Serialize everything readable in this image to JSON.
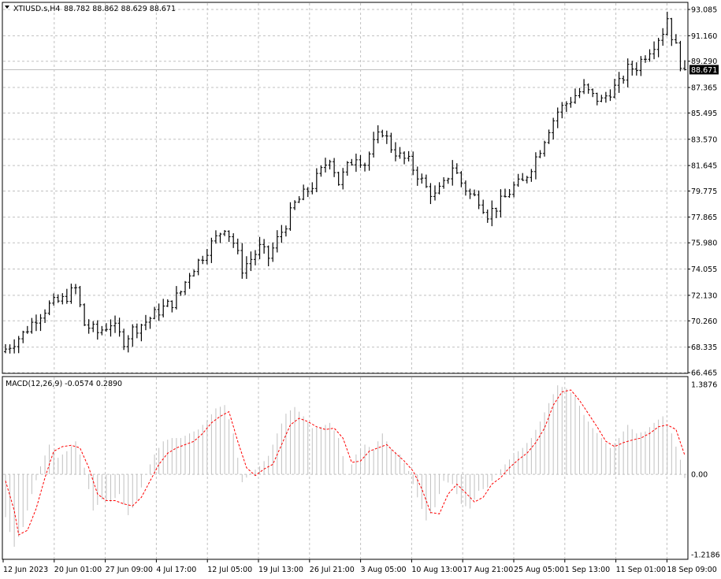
{
  "header": {
    "symbol_label": "XTIUSD.s,H4",
    "ohlc_text": "88.782 88.862 88.629 88.671",
    "macd_label": "MACD(12,26,9) -0.0574 0.2890"
  },
  "colors": {
    "background": "#ffffff",
    "grid": "#c0c0c0",
    "bars": "#000000",
    "histogram": "#c0c0c0",
    "signal": "#ff0000",
    "price_tag_bg": "#000000",
    "price_tag_text": "#ffffff"
  },
  "chart_data": [
    {
      "type": "ohlc",
      "title": "XTIUSD.s,H4",
      "y_ticks": [
        "93.085",
        "91.160",
        "89.290",
        "87.365",
        "85.495",
        "83.570",
        "81.645",
        "79.775",
        "77.865",
        "75.980",
        "74.055",
        "72.130",
        "70.260",
        "68.335",
        "66.465"
      ],
      "ylim": [
        66.465,
        93.085
      ],
      "current_price": 88.671,
      "current_price_label": "88.671",
      "x_ticks": [
        "12 Jun 2023",
        "20 Jun 01:00",
        "27 Jun 09:00",
        "4 Jul 17:00",
        "12 Jul 05:00",
        "19 Jul 13:00",
        "26 Jul 21:00",
        "3 Aug 05:00",
        "10 Aug 13:00",
        "17 Aug 21:00",
        "25 Aug 05:00",
        "1 Sep 13:00",
        "11 Sep 01:00",
        "18 Sep 09:00"
      ],
      "close_path": [
        [
          0,
          68.2
        ],
        [
          4,
          69.3
        ],
        [
          7,
          70.5
        ],
        [
          10,
          71.4
        ],
        [
          13,
          71.8
        ],
        [
          16,
          72.6
        ],
        [
          18,
          70.0
        ],
        [
          21,
          69.4
        ],
        [
          24,
          70.1
        ],
        [
          27,
          68.8
        ],
        [
          29,
          69.6
        ],
        [
          32,
          70.2
        ],
        [
          35,
          71.0
        ],
        [
          38,
          71.6
        ],
        [
          40,
          72.4
        ],
        [
          42,
          73.8
        ],
        [
          44,
          74.6
        ],
        [
          46,
          75.5
        ],
        [
          48,
          76.3
        ],
        [
          50,
          77.2
        ],
        [
          52,
          76.0
        ],
        [
          54,
          74.1
        ],
        [
          56,
          74.8
        ],
        [
          58,
          75.6
        ],
        [
          60,
          74.9
        ],
        [
          62,
          76.2
        ],
        [
          64,
          77.4
        ],
        [
          66,
          78.8
        ],
        [
          68,
          79.5
        ],
        [
          70,
          80.2
        ],
        [
          72,
          81.2
        ],
        [
          74,
          82.3
        ],
        [
          76,
          80.4
        ],
        [
          78,
          81.5
        ],
        [
          80,
          82.4
        ],
        [
          82,
          81.8
        ],
        [
          84,
          83.2
        ],
        [
          86,
          84.2
        ],
        [
          88,
          83.0
        ],
        [
          90,
          82.3
        ],
        [
          92,
          81.9
        ],
        [
          94,
          81.0
        ],
        [
          96,
          80.0
        ],
        [
          98,
          79.4
        ],
        [
          100,
          80.2
        ],
        [
          102,
          81.6
        ],
        [
          104,
          80.4
        ],
        [
          106,
          79.5
        ],
        [
          108,
          79.2
        ],
        [
          110,
          78.1
        ],
        [
          112,
          78.6
        ],
        [
          114,
          79.3
        ],
        [
          116,
          80.1
        ],
        [
          118,
          80.4
        ],
        [
          120,
          81.6
        ],
        [
          122,
          82.9
        ],
        [
          124,
          84.4
        ],
        [
          126,
          85.6
        ],
        [
          128,
          86.2
        ],
        [
          130,
          86.8
        ],
        [
          132,
          87.3
        ],
        [
          134,
          86.7
        ],
        [
          136,
          86.4
        ],
        [
          138,
          87.1
        ],
        [
          140,
          87.6
        ],
        [
          142,
          88.7
        ],
        [
          144,
          88.9
        ],
        [
          146,
          89.8
        ],
        [
          148,
          90.6
        ],
        [
          150,
          91.5
        ],
        [
          151,
          92.5
        ],
        [
          152,
          91.2
        ],
        [
          153,
          90.3
        ],
        [
          154,
          89.2
        ],
        [
          155,
          88.671
        ]
      ]
    },
    {
      "type": "line",
      "title": "MACD(12,26,9)",
      "y_ticks": [
        "1.3876",
        "0.00",
        "-1.2186"
      ],
      "ylim": [
        -1.2186,
        1.3876
      ],
      "series": [
        {
          "name": "MACD",
          "style": "histogram",
          "points": [
            [
              0,
              -0.65
            ],
            [
              2,
              -1.1
            ],
            [
              4,
              -0.8
            ],
            [
              6,
              -0.3
            ],
            [
              8,
              0.12
            ],
            [
              10,
              0.45
            ],
            [
              12,
              0.25
            ],
            [
              14,
              0.35
            ],
            [
              16,
              0.5
            ],
            [
              18,
              0.1
            ],
            [
              20,
              -0.55
            ],
            [
              22,
              -0.38
            ],
            [
              24,
              -0.42
            ],
            [
              26,
              -0.3
            ],
            [
              28,
              -0.62
            ],
            [
              30,
              -0.4
            ],
            [
              32,
              0.0
            ],
            [
              34,
              0.3
            ],
            [
              36,
              0.5
            ],
            [
              38,
              0.55
            ],
            [
              40,
              0.55
            ],
            [
              42,
              0.62
            ],
            [
              44,
              0.68
            ],
            [
              46,
              0.82
            ],
            [
              48,
              1.0
            ],
            [
              50,
              1.05
            ],
            [
              52,
              0.62
            ],
            [
              54,
              -0.12
            ],
            [
              56,
              0.02
            ],
            [
              58,
              0.12
            ],
            [
              60,
              0.28
            ],
            [
              62,
              0.62
            ],
            [
              64,
              0.92
            ],
            [
              66,
              1.02
            ],
            [
              68,
              0.88
            ],
            [
              70,
              0.7
            ],
            [
              72,
              0.72
            ],
            [
              74,
              0.78
            ],
            [
              76,
              0.55
            ],
            [
              78,
              0.0
            ],
            [
              80,
              0.3
            ],
            [
              82,
              0.45
            ],
            [
              84,
              0.38
            ],
            [
              86,
              0.62
            ],
            [
              88,
              0.38
            ],
            [
              90,
              0.3
            ],
            [
              92,
              0.05
            ],
            [
              94,
              -0.35
            ],
            [
              96,
              -0.7
            ],
            [
              98,
              -0.5
            ],
            [
              100,
              -0.1
            ],
            [
              102,
              -0.15
            ],
            [
              104,
              -0.45
            ],
            [
              106,
              -0.52
            ],
            [
              108,
              -0.25
            ],
            [
              110,
              -0.2
            ],
            [
              112,
              0.0
            ],
            [
              114,
              0.15
            ],
            [
              116,
              0.3
            ],
            [
              118,
              0.4
            ],
            [
              120,
              0.55
            ],
            [
              122,
              0.8
            ],
            [
              124,
              1.08
            ],
            [
              126,
              1.35
            ],
            [
              128,
              1.3
            ],
            [
              130,
              1.18
            ],
            [
              132,
              0.9
            ],
            [
              134,
              0.7
            ],
            [
              136,
              0.55
            ],
            [
              138,
              0.4
            ],
            [
              140,
              0.55
            ],
            [
              142,
              0.75
            ],
            [
              144,
              0.62
            ],
            [
              146,
              0.65
            ],
            [
              148,
              0.78
            ],
            [
              150,
              0.88
            ],
            [
              152,
              0.62
            ],
            [
              154,
              0.22
            ],
            [
              155,
              -0.0574
            ]
          ]
        },
        {
          "name": "Signal",
          "style": "dotted-line",
          "points": [
            [
              0,
              -0.1
            ],
            [
              2,
              -0.55
            ],
            [
              3,
              -0.92
            ],
            [
              5,
              -0.85
            ],
            [
              7,
              -0.52
            ],
            [
              9,
              -0.05
            ],
            [
              11,
              0.35
            ],
            [
              13,
              0.42
            ],
            [
              15,
              0.44
            ],
            [
              17,
              0.4
            ],
            [
              19,
              0.1
            ],
            [
              21,
              -0.3
            ],
            [
              23,
              -0.4
            ],
            [
              25,
              -0.4
            ],
            [
              27,
              -0.45
            ],
            [
              29,
              -0.48
            ],
            [
              31,
              -0.35
            ],
            [
              33,
              -0.1
            ],
            [
              35,
              0.15
            ],
            [
              37,
              0.32
            ],
            [
              39,
              0.4
            ],
            [
              41,
              0.45
            ],
            [
              43,
              0.5
            ],
            [
              45,
              0.62
            ],
            [
              47,
              0.78
            ],
            [
              49,
              0.88
            ],
            [
              51,
              0.95
            ],
            [
              53,
              0.5
            ],
            [
              55,
              0.1
            ],
            [
              57,
              -0.02
            ],
            [
              59,
              0.08
            ],
            [
              61,
              0.15
            ],
            [
              63,
              0.45
            ],
            [
              65,
              0.75
            ],
            [
              67,
              0.85
            ],
            [
              69,
              0.8
            ],
            [
              71,
              0.72
            ],
            [
              73,
              0.68
            ],
            [
              75,
              0.7
            ],
            [
              77,
              0.55
            ],
            [
              79,
              0.18
            ],
            [
              81,
              0.2
            ],
            [
              83,
              0.35
            ],
            [
              85,
              0.4
            ],
            [
              87,
              0.45
            ],
            [
              89,
              0.32
            ],
            [
              91,
              0.2
            ],
            [
              93,
              0.05
            ],
            [
              95,
              -0.22
            ],
            [
              97,
              -0.58
            ],
            [
              99,
              -0.6
            ],
            [
              101,
              -0.3
            ],
            [
              103,
              -0.15
            ],
            [
              105,
              -0.28
            ],
            [
              107,
              -0.42
            ],
            [
              109,
              -0.35
            ],
            [
              111,
              -0.15
            ],
            [
              113,
              -0.05
            ],
            [
              115,
              0.1
            ],
            [
              117,
              0.22
            ],
            [
              119,
              0.32
            ],
            [
              121,
              0.48
            ],
            [
              123,
              0.7
            ],
            [
              125,
              1.05
            ],
            [
              127,
              1.25
            ],
            [
              129,
              1.28
            ],
            [
              131,
              1.12
            ],
            [
              133,
              0.92
            ],
            [
              135,
              0.72
            ],
            [
              137,
              0.5
            ],
            [
              139,
              0.42
            ],
            [
              141,
              0.48
            ],
            [
              143,
              0.52
            ],
            [
              145,
              0.55
            ],
            [
              147,
              0.62
            ],
            [
              149,
              0.72
            ],
            [
              151,
              0.75
            ],
            [
              153,
              0.68
            ],
            [
              155,
              0.289
            ]
          ]
        }
      ]
    }
  ]
}
